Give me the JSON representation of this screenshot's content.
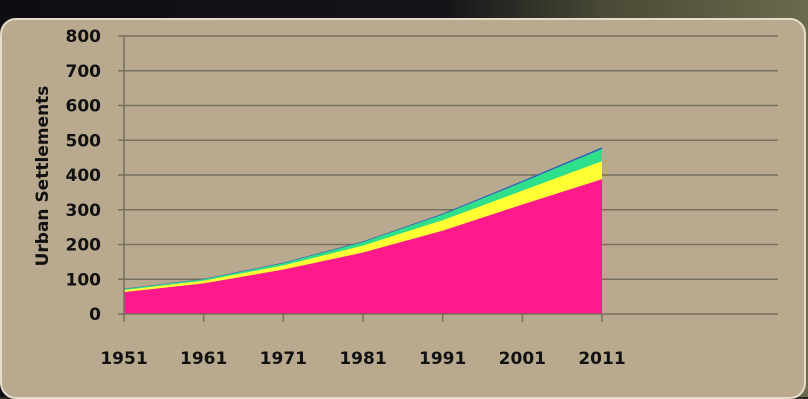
{
  "chart_data": {
    "type": "area",
    "title": "",
    "xlabel": "",
    "ylabel": "Urban Settlements",
    "x": [
      "1951",
      "1961",
      "1971",
      "1981",
      "1991",
      "2001",
      "2011"
    ],
    "ylim": [
      0,
      800
    ],
    "yticks": [
      0,
      100,
      200,
      300,
      400,
      500,
      600,
      700,
      800
    ],
    "grid": true,
    "legend": "none",
    "stacked": true,
    "series": [
      {
        "color": "#ff1a8c",
        "values": [
          63,
          88,
          128,
          177,
          240,
          315,
          388
        ]
      },
      {
        "color": "#ffff33",
        "values": [
          6,
          8,
          12,
          20,
          30,
          40,
          52
        ]
      },
      {
        "color": "#2ee08a",
        "values": [
          3,
          4,
          6,
          10,
          16,
          24,
          35
        ]
      },
      {
        "color": "#2a64b8",
        "values": [
          1,
          1,
          2,
          2,
          3,
          4,
          5
        ]
      }
    ]
  }
}
